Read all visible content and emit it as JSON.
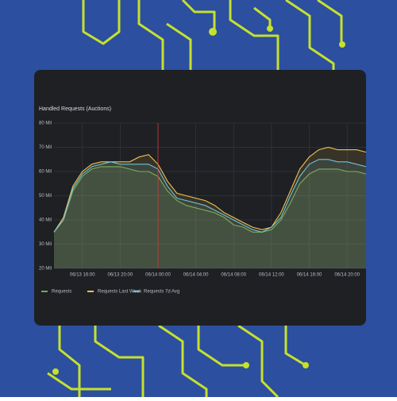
{
  "chart_data": {
    "type": "line",
    "title": "Handled Requests (Auctions)",
    "x": [
      "06/13 13:00",
      "06/13 14:00",
      "06/13 15:00",
      "06/13 16:00",
      "06/13 17:00",
      "06/13 18:00",
      "06/13 19:00",
      "06/13 20:00",
      "06/13 21:00",
      "06/13 22:00",
      "06/13 23:00",
      "06/14 00:00",
      "06/14 01:00",
      "06/14 02:00",
      "06/14 03:00",
      "06/14 04:00",
      "06/14 05:00",
      "06/14 06:00",
      "06/14 07:00",
      "06/14 08:00",
      "06/14 09:00",
      "06/14 10:00",
      "06/14 11:00",
      "06/14 12:00",
      "06/14 13:00",
      "06/14 14:00",
      "06/14 15:00",
      "06/14 16:00",
      "06/14 17:00",
      "06/14 18:00",
      "06/14 19:00",
      "06/14 20:00",
      "06/14 21:00",
      "06/14 22:00"
    ],
    "series": [
      {
        "name": "Requests",
        "color": "#73a84a",
        "values": [
          35,
          40,
          52,
          58,
          61,
          62,
          62,
          62,
          61,
          60,
          60,
          58,
          52,
          48,
          46,
          45,
          44,
          43,
          41,
          38,
          37,
          35,
          35,
          36,
          40,
          47,
          55,
          59,
          61,
          61,
          61,
          60,
          60,
          59
        ]
      },
      {
        "name": "Requests Last Week",
        "color": "#f2c14e",
        "values": [
          35,
          41,
          54,
          60,
          63,
          64,
          64,
          64,
          64,
          66,
          67,
          63,
          56,
          51,
          50,
          49,
          48,
          46,
          43,
          41,
          39,
          37,
          36,
          37,
          43,
          52,
          61,
          66,
          69,
          70,
          69,
          69,
          69,
          68
        ]
      },
      {
        "name": "Requests 7d Avg",
        "color": "#6cc5d8",
        "values": [
          35,
          40,
          53,
          59,
          62,
          63,
          64,
          63,
          63,
          63,
          63,
          61,
          54,
          49,
          48,
          47,
          46,
          44,
          42,
          40,
          38,
          36,
          35,
          37,
          41,
          50,
          58,
          63,
          65,
          65,
          64,
          64,
          63,
          62
        ]
      }
    ],
    "xlim": [
      "06/13 13:00",
      "06/14 22:00"
    ],
    "xticks": [
      "06/13 16:00",
      "06/13 20:00",
      "06/14 00:00",
      "06/14 04:00",
      "06/14 08:00",
      "06/14 12:00",
      "06/14 16:00",
      "06/14 20:00"
    ],
    "ylim": [
      20,
      80
    ],
    "yticks": [
      {
        "value": 20,
        "label": "20 Mil"
      },
      {
        "value": 30,
        "label": "30 Mil"
      },
      {
        "value": 40,
        "label": "40 Mil"
      },
      {
        "value": 50,
        "label": "50 Mil"
      },
      {
        "value": 60,
        "label": "60 Mil"
      },
      {
        "value": 70,
        "label": "70 Mil"
      },
      {
        "value": 80,
        "label": "80 Mil"
      }
    ],
    "marker_x": "06/14 00:00",
    "grid": true
  }
}
